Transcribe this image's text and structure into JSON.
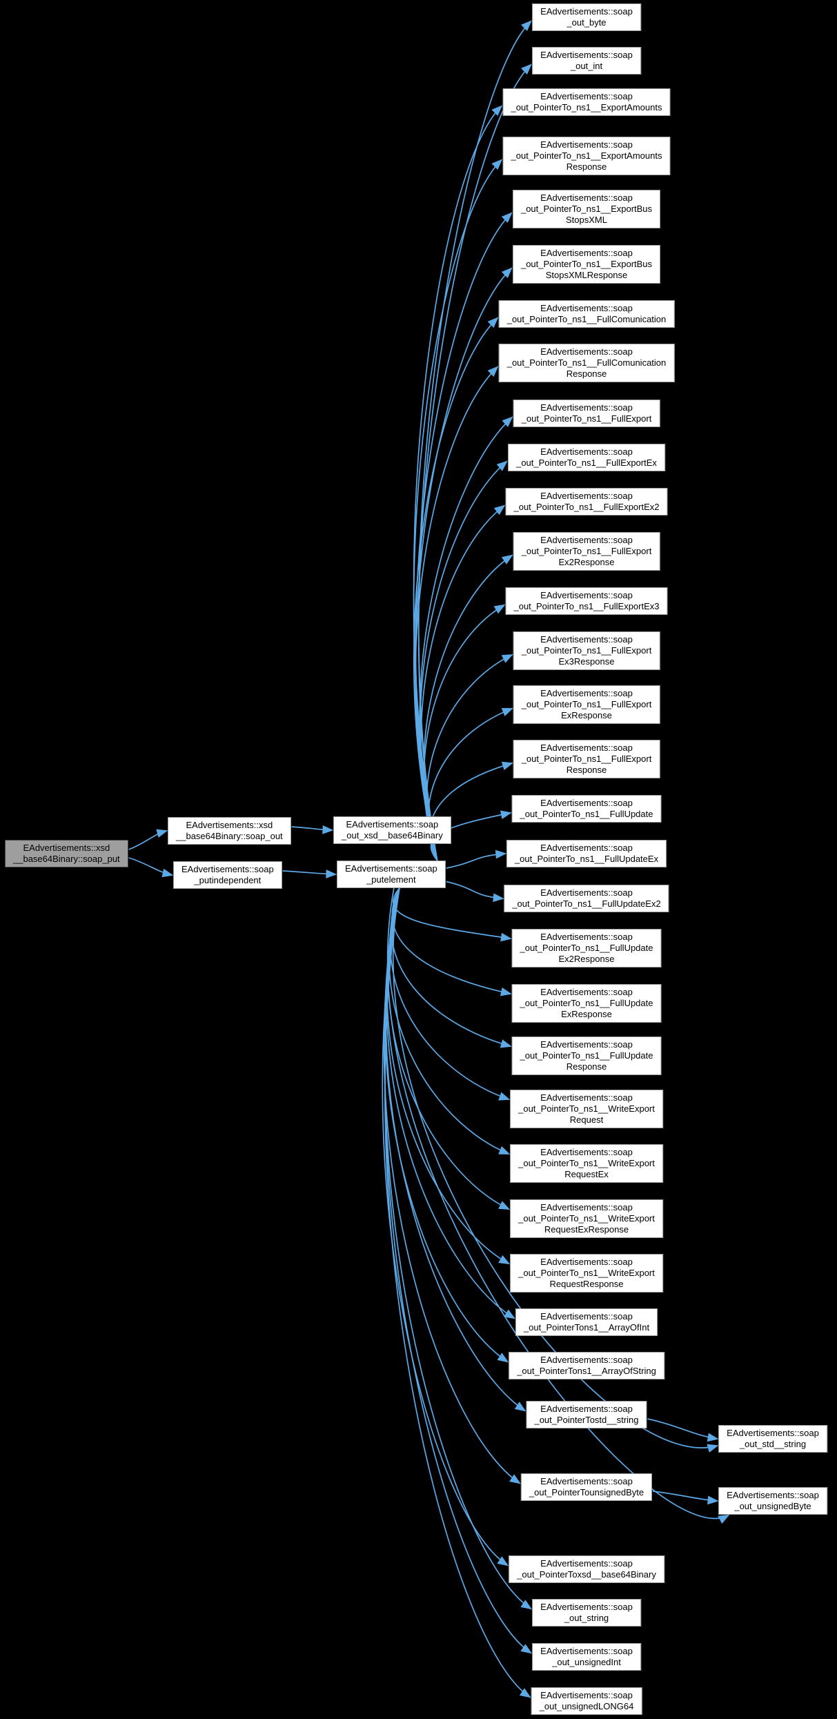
{
  "diagram": {
    "type": "call-graph",
    "background_color": "#000000",
    "edge_color": "#5ca9e6",
    "node_fill": "#ffffff",
    "node_border_color": "#9a9a9a",
    "highlight_fill": "#9e9e9e",
    "nodes": [
      {
        "id": "soap_put",
        "lines": [
          "EAdvertisements::xsd",
          "__base64Binary::soap_put"
        ],
        "highlighted": true
      },
      {
        "id": "soap_out",
        "lines": [
          "EAdvertisements::xsd",
          "__base64Binary::soap_out"
        ],
        "highlighted": false
      },
      {
        "id": "putindependent",
        "lines": [
          "EAdvertisements::soap",
          "_putindependent"
        ],
        "highlighted": false
      },
      {
        "id": "out_xsd_base64Binary",
        "lines": [
          "EAdvertisements::soap",
          "_out_xsd__base64Binary"
        ],
        "highlighted": false
      },
      {
        "id": "putelement",
        "lines": [
          "EAdvertisements::soap",
          "_putelement"
        ],
        "highlighted": false
      },
      {
        "id": "out_byte",
        "lines": [
          "EAdvertisements::soap",
          "_out_byte"
        ],
        "highlighted": false
      },
      {
        "id": "out_int",
        "lines": [
          "EAdvertisements::soap",
          "_out_int"
        ],
        "highlighted": false
      },
      {
        "id": "p_ExportAmounts",
        "lines": [
          "EAdvertisements::soap",
          "_out_PointerTo_ns1__ExportAmounts"
        ],
        "highlighted": false
      },
      {
        "id": "p_ExportAmountsResponse",
        "lines": [
          "EAdvertisements::soap",
          "_out_PointerTo_ns1__ExportAmounts",
          "Response"
        ],
        "highlighted": false
      },
      {
        "id": "p_ExportBusStopsXML",
        "lines": [
          "EAdvertisements::soap",
          "_out_PointerTo_ns1__ExportBus",
          "StopsXML"
        ],
        "highlighted": false
      },
      {
        "id": "p_ExportBusStopsXMLResponse",
        "lines": [
          "EAdvertisements::soap",
          "_out_PointerTo_ns1__ExportBus",
          "StopsXMLResponse"
        ],
        "highlighted": false
      },
      {
        "id": "p_FullComunication",
        "lines": [
          "EAdvertisements::soap",
          "_out_PointerTo_ns1__FullComunication"
        ],
        "highlighted": false
      },
      {
        "id": "p_FullComunicationResponse",
        "lines": [
          "EAdvertisements::soap",
          "_out_PointerTo_ns1__FullComunication",
          "Response"
        ],
        "highlighted": false
      },
      {
        "id": "p_FullExport",
        "lines": [
          "EAdvertisements::soap",
          "_out_PointerTo_ns1__FullExport"
        ],
        "highlighted": false
      },
      {
        "id": "p_FullExportEx",
        "lines": [
          "EAdvertisements::soap",
          "_out_PointerTo_ns1__FullExportEx"
        ],
        "highlighted": false
      },
      {
        "id": "p_FullExportEx2",
        "lines": [
          "EAdvertisements::soap",
          "_out_PointerTo_ns1__FullExportEx2"
        ],
        "highlighted": false
      },
      {
        "id": "p_FullExportEx2Response",
        "lines": [
          "EAdvertisements::soap",
          "_out_PointerTo_ns1__FullExport",
          "Ex2Response"
        ],
        "highlighted": false
      },
      {
        "id": "p_FullExportEx3",
        "lines": [
          "EAdvertisements::soap",
          "_out_PointerTo_ns1__FullExportEx3"
        ],
        "highlighted": false
      },
      {
        "id": "p_FullExportEx3Response",
        "lines": [
          "EAdvertisements::soap",
          "_out_PointerTo_ns1__FullExport",
          "Ex3Response"
        ],
        "highlighted": false
      },
      {
        "id": "p_FullExportExResponse",
        "lines": [
          "EAdvertisements::soap",
          "_out_PointerTo_ns1__FullExport",
          "ExResponse"
        ],
        "highlighted": false
      },
      {
        "id": "p_FullExportResponse",
        "lines": [
          "EAdvertisements::soap",
          "_out_PointerTo_ns1__FullExport",
          "Response"
        ],
        "highlighted": false
      },
      {
        "id": "p_FullUpdate",
        "lines": [
          "EAdvertisements::soap",
          "_out_PointerTo_ns1__FullUpdate"
        ],
        "highlighted": false
      },
      {
        "id": "p_FullUpdateEx",
        "lines": [
          "EAdvertisements::soap",
          "_out_PointerTo_ns1__FullUpdateEx"
        ],
        "highlighted": false
      },
      {
        "id": "p_FullUpdateEx2",
        "lines": [
          "EAdvertisements::soap",
          "_out_PointerTo_ns1__FullUpdateEx2"
        ],
        "highlighted": false
      },
      {
        "id": "p_FullUpdateEx2Response",
        "lines": [
          "EAdvertisements::soap",
          "_out_PointerTo_ns1__FullUpdate",
          "Ex2Response"
        ],
        "highlighted": false
      },
      {
        "id": "p_FullUpdateExResponse",
        "lines": [
          "EAdvertisements::soap",
          "_out_PointerTo_ns1__FullUpdate",
          "ExResponse"
        ],
        "highlighted": false
      },
      {
        "id": "p_FullUpdateResponse",
        "lines": [
          "EAdvertisements::soap",
          "_out_PointerTo_ns1__FullUpdate",
          "Response"
        ],
        "highlighted": false
      },
      {
        "id": "p_WriteExportRequest",
        "lines": [
          "EAdvertisements::soap",
          "_out_PointerTo_ns1__WriteExport",
          "Request"
        ],
        "highlighted": false
      },
      {
        "id": "p_WriteExportRequestEx",
        "lines": [
          "EAdvertisements::soap",
          "_out_PointerTo_ns1__WriteExport",
          "RequestEx"
        ],
        "highlighted": false
      },
      {
        "id": "p_WriteExportRequestExResponse",
        "lines": [
          "EAdvertisements::soap",
          "_out_PointerTo_ns1__WriteExport",
          "RequestExResponse"
        ],
        "highlighted": false
      },
      {
        "id": "p_WriteExportRequestResponse",
        "lines": [
          "EAdvertisements::soap",
          "_out_PointerTo_ns1__WriteExport",
          "RequestResponse"
        ],
        "highlighted": false
      },
      {
        "id": "p_ArrayOfInt",
        "lines": [
          "EAdvertisements::soap",
          "_out_PointerTons1__ArrayOfInt"
        ],
        "highlighted": false
      },
      {
        "id": "p_ArrayOfString",
        "lines": [
          "EAdvertisements::soap",
          "_out_PointerTons1__ArrayOfString"
        ],
        "highlighted": false
      },
      {
        "id": "p_std_string",
        "lines": [
          "EAdvertisements::soap",
          "_out_PointerTostd__string"
        ],
        "highlighted": false
      },
      {
        "id": "p_unsignedByte",
        "lines": [
          "EAdvertisements::soap",
          "_out_PointerTounsignedByte"
        ],
        "highlighted": false
      },
      {
        "id": "p_xsd_base64Binary",
        "lines": [
          "EAdvertisements::soap",
          "_out_PointerToxsd__base64Binary"
        ],
        "highlighted": false
      },
      {
        "id": "out_string",
        "lines": [
          "EAdvertisements::soap",
          "_out_string"
        ],
        "highlighted": false
      },
      {
        "id": "out_unsignedInt",
        "lines": [
          "EAdvertisements::soap",
          "_out_unsignedInt"
        ],
        "highlighted": false
      },
      {
        "id": "out_unsignedLONG64",
        "lines": [
          "EAdvertisements::soap",
          "_out_unsignedLONG64"
        ],
        "highlighted": false
      },
      {
        "id": "out_std_string",
        "lines": [
          "EAdvertisements::soap",
          "_out_std__string"
        ],
        "highlighted": false
      },
      {
        "id": "out_unsignedByte",
        "lines": [
          "EAdvertisements::soap",
          "_out_unsignedByte"
        ],
        "highlighted": false
      }
    ],
    "edges": [
      {
        "from": "soap_put",
        "to": "soap_out"
      },
      {
        "from": "soap_put",
        "to": "putindependent"
      },
      {
        "from": "soap_out",
        "to": "out_xsd_base64Binary"
      },
      {
        "from": "putindependent",
        "to": "putelement"
      },
      {
        "from": "putelement",
        "to": "out_byte"
      },
      {
        "from": "putelement",
        "to": "out_int"
      },
      {
        "from": "putelement",
        "to": "p_ExportAmounts"
      },
      {
        "from": "putelement",
        "to": "p_ExportAmountsResponse"
      },
      {
        "from": "putelement",
        "to": "p_ExportBusStopsXML"
      },
      {
        "from": "putelement",
        "to": "p_ExportBusStopsXMLResponse"
      },
      {
        "from": "putelement",
        "to": "p_FullComunication"
      },
      {
        "from": "putelement",
        "to": "p_FullComunicationResponse"
      },
      {
        "from": "putelement",
        "to": "p_FullExport"
      },
      {
        "from": "putelement",
        "to": "p_FullExportEx"
      },
      {
        "from": "putelement",
        "to": "p_FullExportEx2"
      },
      {
        "from": "putelement",
        "to": "p_FullExportEx2Response"
      },
      {
        "from": "putelement",
        "to": "p_FullExportEx3"
      },
      {
        "from": "putelement",
        "to": "p_FullExportEx3Response"
      },
      {
        "from": "putelement",
        "to": "p_FullExportExResponse"
      },
      {
        "from": "putelement",
        "to": "p_FullExportResponse"
      },
      {
        "from": "putelement",
        "to": "p_FullUpdate"
      },
      {
        "from": "putelement",
        "to": "p_FullUpdateEx"
      },
      {
        "from": "putelement",
        "to": "p_FullUpdateEx2"
      },
      {
        "from": "putelement",
        "to": "p_FullUpdateEx2Response"
      },
      {
        "from": "putelement",
        "to": "p_FullUpdateExResponse"
      },
      {
        "from": "putelement",
        "to": "p_FullUpdateResponse"
      },
      {
        "from": "putelement",
        "to": "p_WriteExportRequest"
      },
      {
        "from": "putelement",
        "to": "p_WriteExportRequestEx"
      },
      {
        "from": "putelement",
        "to": "p_WriteExportRequestExResponse"
      },
      {
        "from": "putelement",
        "to": "p_WriteExportRequestResponse"
      },
      {
        "from": "putelement",
        "to": "p_ArrayOfInt"
      },
      {
        "from": "putelement",
        "to": "p_ArrayOfString"
      },
      {
        "from": "putelement",
        "to": "p_std_string"
      },
      {
        "from": "putelement",
        "to": "p_unsignedByte"
      },
      {
        "from": "putelement",
        "to": "p_xsd_base64Binary"
      },
      {
        "from": "putelement",
        "to": "out_string"
      },
      {
        "from": "putelement",
        "to": "out_unsignedInt"
      },
      {
        "from": "putelement",
        "to": "out_unsignedLONG64"
      },
      {
        "from": "putelement",
        "to": "out_std_string"
      },
      {
        "from": "putelement",
        "to": "out_unsignedByte"
      },
      {
        "from": "p_std_string",
        "to": "out_std_string"
      },
      {
        "from": "p_unsignedByte",
        "to": "out_unsignedByte"
      }
    ]
  }
}
